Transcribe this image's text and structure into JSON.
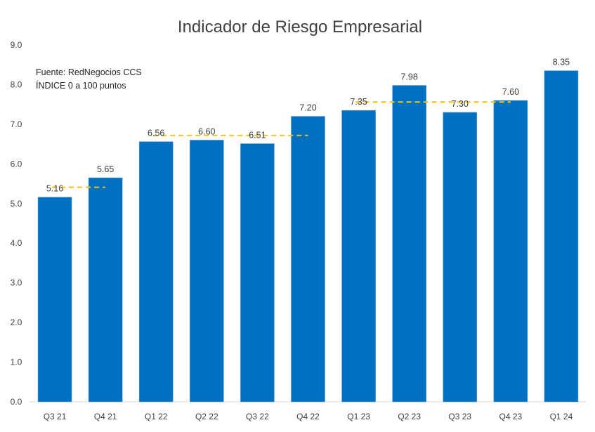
{
  "chart_data": {
    "type": "bar",
    "title": "Indicador de Riesgo Empresarial",
    "annotations": [
      "Fuente: RedNegocios CCS",
      "ÍNDICE 0 a 100  puntos"
    ],
    "categories": [
      "Q3 21",
      "Q4 21",
      "Q1 22",
      "Q2 22",
      "Q3 22",
      "Q4 22",
      "Q1 23",
      "Q2 23",
      "Q3 23",
      "Q4 23",
      "Q1 24"
    ],
    "series": [
      {
        "name": "Indicador de Riesgo Empresarial",
        "values": [
          5.16,
          5.65,
          6.56,
          6.6,
          6.51,
          7.2,
          7.35,
          7.98,
          7.3,
          7.6,
          8.35
        ],
        "data_labels": [
          "5.16",
          "5.65",
          "6.56",
          "6.60",
          "6.51",
          "7.20",
          "7.35",
          "7.98",
          "7.30",
          "7.60",
          "8.35"
        ],
        "color": "#0070C0"
      }
    ],
    "average_lines": [
      {
        "from": "Q3 21",
        "to": "Q4 21",
        "value": 5.41,
        "color": "#FFC000",
        "style": "dashed"
      },
      {
        "from": "Q1 22",
        "to": "Q4 22",
        "value": 6.72,
        "color": "#FFC000",
        "style": "dashed"
      },
      {
        "from": "Q1 23",
        "to": "Q4 23",
        "value": 7.56,
        "color": "#FFC000",
        "style": "dashed"
      }
    ],
    "yticks": [
      "0.0",
      "1.0",
      "2.0",
      "3.0",
      "4.0",
      "5.0",
      "6.0",
      "7.0",
      "8.0",
      "9.0"
    ],
    "ylim": [
      0,
      9
    ],
    "xlabel": "",
    "ylabel": "",
    "grid": false,
    "legend": "none"
  }
}
